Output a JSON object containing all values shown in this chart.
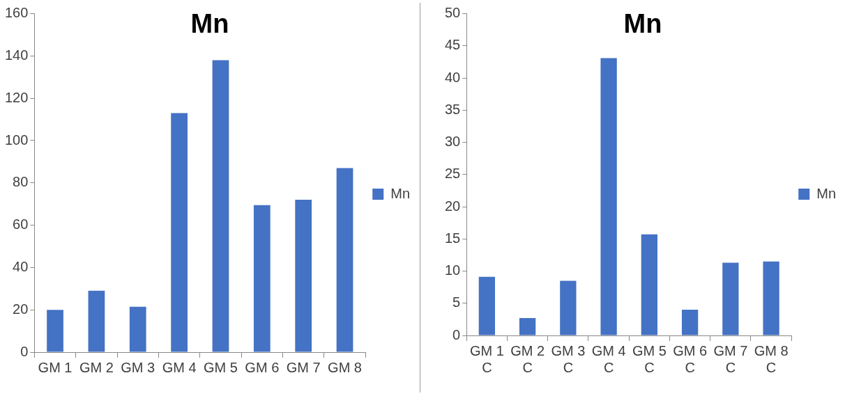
{
  "chart_data": [
    {
      "type": "bar",
      "title": "Mn",
      "categories": [
        "GM 1",
        "GM 2",
        "GM 3",
        "GM 4",
        "GM 5",
        "GM 6",
        "GM 7",
        "GM 8"
      ],
      "series": [
        {
          "name": "Mn",
          "color": "#4472c4",
          "values": [
            20,
            29,
            21.5,
            113,
            138,
            69.5,
            72,
            87
          ]
        }
      ],
      "ylim": [
        0,
        160
      ],
      "yticks": [
        0,
        20,
        40,
        60,
        80,
        100,
        120,
        140,
        160
      ],
      "legend": "right"
    },
    {
      "type": "bar",
      "title": "Mn",
      "categories": [
        "GM 1 C",
        "GM 2 C",
        "GM 3 C",
        "GM 4 C",
        "GM 5 C",
        "GM 6 C",
        "GM 7 C",
        "GM 8 C"
      ],
      "series": [
        {
          "name": "Mn",
          "color": "#4472c4",
          "values": [
            9.1,
            2.7,
            8.5,
            43.1,
            15.7,
            4,
            11.3,
            11.5
          ]
        }
      ],
      "ylim": [
        0,
        50
      ],
      "yticks": [
        0,
        5,
        10,
        15,
        20,
        25,
        30,
        35,
        40,
        45,
        50
      ],
      "legend": "right"
    }
  ]
}
